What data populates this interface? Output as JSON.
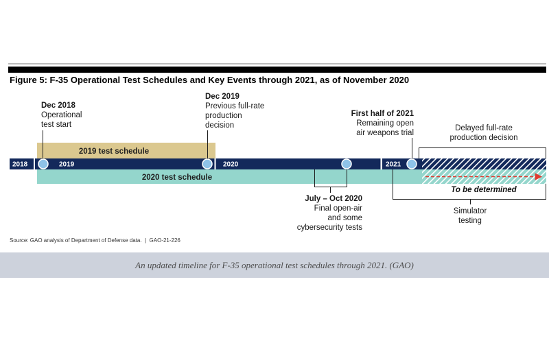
{
  "figure": {
    "title": "Figure 5: F-35 Operational Test Schedules and Key Events through 2021, as of November 2020",
    "source": "Source: GAO analysis of Department of Defense data.  |  GAO-21-226"
  },
  "timeline": {
    "year_labels": [
      "2018",
      "2019",
      "2020",
      "2021"
    ],
    "schedule_2019_label": "2019 test schedule",
    "schedule_2020_label": "2020 test schedule",
    "tbd_label": "To be determined"
  },
  "events": {
    "operational_test_start": {
      "date": "Dec 2018",
      "lines": [
        "Operational",
        "test start"
      ]
    },
    "previous_decision": {
      "date": "Dec 2019",
      "lines": [
        "Previous full-rate",
        "production",
        "decision"
      ]
    },
    "open_air_tests": {
      "date": "July – Oct 2020",
      "lines": [
        "Final open-air",
        "and some",
        "cybersecurity tests"
      ]
    },
    "weapons_trial": {
      "date": "First half of 2021",
      "lines": [
        "Remaining open",
        "air weapons trial"
      ]
    },
    "delayed_decision": {
      "lines": [
        "Delayed full-rate",
        "production decision"
      ]
    },
    "simulator_testing": {
      "lines": [
        "Simulator",
        "testing"
      ]
    }
  },
  "caption": "An updated timeline for F-35 operational test schedules through 2021. (GAO)",
  "colors": {
    "timeline_bar": "#13295b",
    "event_marker": "#8ec3e8",
    "schedule_2019": "#dbc88f",
    "schedule_2020": "#94d6cc",
    "tbd_arrow": "#e03a2f",
    "caption_band": "#cdd2dc"
  }
}
